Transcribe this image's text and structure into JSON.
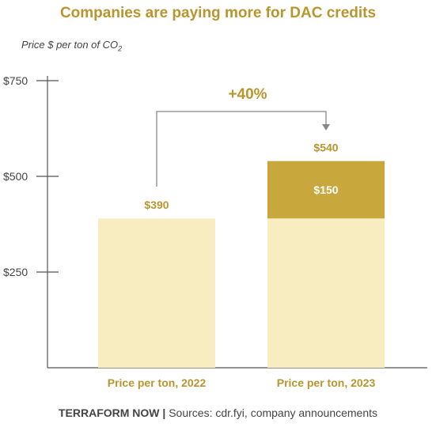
{
  "title": "Companies are paying more for DAC credits",
  "subtitle": {
    "text": "Price $ per ton of CO",
    "subscript": "2"
  },
  "colors": {
    "title": "#b8952e",
    "bar_light": "#f8ecc1",
    "bar_dark": "#c8a83d",
    "label": "#b8952e",
    "axis": "#555555"
  },
  "chart_data": {
    "type": "bar",
    "stacked": true,
    "categories": [
      "Price per ton, 2022",
      "Price per ton, 2023"
    ],
    "series": [
      {
        "values": [
          390,
          390
        ]
      },
      {
        "values": [
          0,
          150
        ]
      }
    ],
    "totals": [
      390,
      540
    ],
    "total_labels": [
      "$390",
      "$540"
    ],
    "segment_labels": [
      "",
      "$150"
    ],
    "ylabel": "Price $ per ton of CO2",
    "yticks": [
      250,
      500,
      750
    ],
    "ytick_labels": [
      "$250",
      "$500",
      "$750"
    ],
    "ylim": [
      0,
      750
    ],
    "annotation": "+40%",
    "grid": false
  },
  "footer": {
    "brand": "TERRAFORM NOW |",
    "source": " Sources: cdr.fyi, company announcements"
  }
}
